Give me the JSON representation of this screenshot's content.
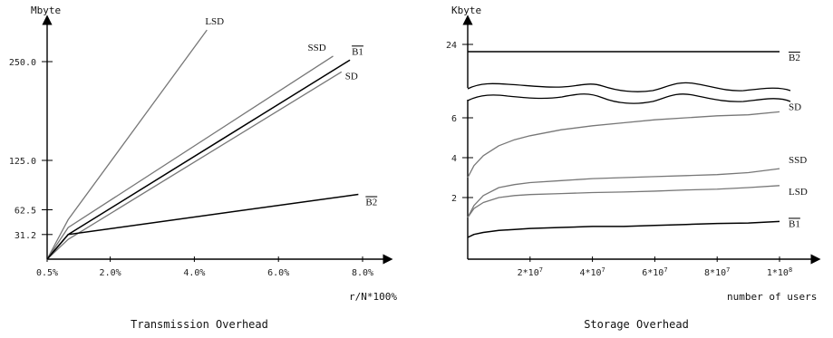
{
  "chart_data": [
    {
      "type": "line",
      "title": "Transmission Overhead",
      "ylabel": "Mbyte",
      "xlabel": "r/N*100%",
      "xlim": [
        0.5,
        8.0
      ],
      "x_ticks": [
        {
          "value": 0.5,
          "label": "0.5%"
        },
        {
          "value": 2.0,
          "label": "2.0%"
        },
        {
          "value": 4.0,
          "label": "4.0%"
        },
        {
          "value": 6.0,
          "label": "6.0%"
        },
        {
          "value": 8.0,
          "label": "8.0%"
        }
      ],
      "y_ticks": [
        {
          "value": 31.2,
          "label": "31.2"
        },
        {
          "value": 62.5,
          "label": "62.5"
        },
        {
          "value": 125.0,
          "label": "125.0"
        },
        {
          "value": 250.0,
          "label": "250.0"
        }
      ],
      "series": [
        {
          "name": "LSD",
          "overline": false,
          "color": "#777777",
          "x": [
            0.5,
            1.0,
            4.3
          ],
          "y": [
            0,
            50,
            290
          ]
        },
        {
          "name": "SSD",
          "overline": false,
          "color": "#777777",
          "x": [
            0.5,
            1.0,
            7.3
          ],
          "y": [
            0,
            40,
            257
          ]
        },
        {
          "name": "B1",
          "overline": true,
          "color": "#000000",
          "x": [
            0.5,
            1.0,
            7.7
          ],
          "y": [
            0,
            31.2,
            252
          ]
        },
        {
          "name": "SD",
          "overline": false,
          "color": "#777777",
          "x": [
            0.5,
            1.0,
            7.5
          ],
          "y": [
            0,
            25,
            237
          ]
        },
        {
          "name": "B2",
          "overline": true,
          "color": "#000000",
          "x": [
            0.5,
            1.0,
            7.9
          ],
          "y": [
            0,
            31.2,
            82
          ]
        }
      ]
    },
    {
      "type": "line",
      "title": "Storage Overhead",
      "ylabel": "Kbyte",
      "xlabel": "number of users",
      "xlim": [
        0,
        100000000
      ],
      "x_ticks": [
        {
          "value": 20000000,
          "label": "2*10",
          "exp": "7"
        },
        {
          "value": 40000000,
          "label": "4*10",
          "exp": "7"
        },
        {
          "value": 60000000,
          "label": "6*10",
          "exp": "7"
        },
        {
          "value": 80000000,
          "label": "8*10",
          "exp": "7"
        },
        {
          "value": 100000000,
          "label": "1*10",
          "exp": "8"
        }
      ],
      "y_ticks": [
        {
          "value": 2,
          "label": "2"
        },
        {
          "value": 4,
          "label": "4"
        },
        {
          "value": 6,
          "label": "6"
        },
        {
          "value": 24,
          "label": "24"
        }
      ],
      "axis_break": true,
      "series": [
        {
          "name": "B2",
          "overline": true,
          "color": "#000000",
          "x": [
            0,
            100000000
          ],
          "y": [
            23,
            23
          ]
        },
        {
          "name": "SD",
          "overline": false,
          "color": "#777777",
          "x": [
            0,
            2000000,
            5000000,
            10000000,
            15000000,
            20000000,
            30000000,
            40000000,
            50000000,
            60000000,
            70000000,
            80000000,
            90000000,
            100000000
          ],
          "y": [
            3.0,
            3.6,
            4.1,
            4.6,
            4.9,
            5.1,
            5.4,
            5.6,
            5.75,
            5.9,
            6.0,
            6.1,
            6.15,
            6.3
          ]
        },
        {
          "name": "SSD",
          "overline": false,
          "color": "#777777",
          "x": [
            0,
            2000000,
            5000000,
            10000000,
            15000000,
            20000000,
            30000000,
            40000000,
            50000000,
            60000000,
            70000000,
            80000000,
            90000000,
            100000000
          ],
          "y": [
            1.0,
            1.6,
            2.1,
            2.5,
            2.65,
            2.75,
            2.85,
            2.95,
            3.0,
            3.05,
            3.1,
            3.15,
            3.25,
            3.45
          ]
        },
        {
          "name": "LSD",
          "overline": false,
          "color": "#777777",
          "x": [
            0,
            2000000,
            5000000,
            10000000,
            15000000,
            20000000,
            30000000,
            40000000,
            50000000,
            60000000,
            70000000,
            80000000,
            90000000,
            100000000
          ],
          "y": [
            1.0,
            1.45,
            1.75,
            2.0,
            2.1,
            2.15,
            2.2,
            2.25,
            2.28,
            2.32,
            2.38,
            2.42,
            2.5,
            2.6
          ]
        },
        {
          "name": "B1",
          "overline": true,
          "color": "#000000",
          "x": [
            0,
            2000000,
            5000000,
            10000000,
            15000000,
            20000000,
            30000000,
            40000000,
            50000000,
            60000000,
            70000000,
            80000000,
            90000000,
            100000000
          ],
          "y": [
            0.0,
            0.15,
            0.25,
            0.35,
            0.4,
            0.45,
            0.5,
            0.55,
            0.55,
            0.6,
            0.65,
            0.7,
            0.72,
            0.8
          ]
        }
      ]
    }
  ]
}
